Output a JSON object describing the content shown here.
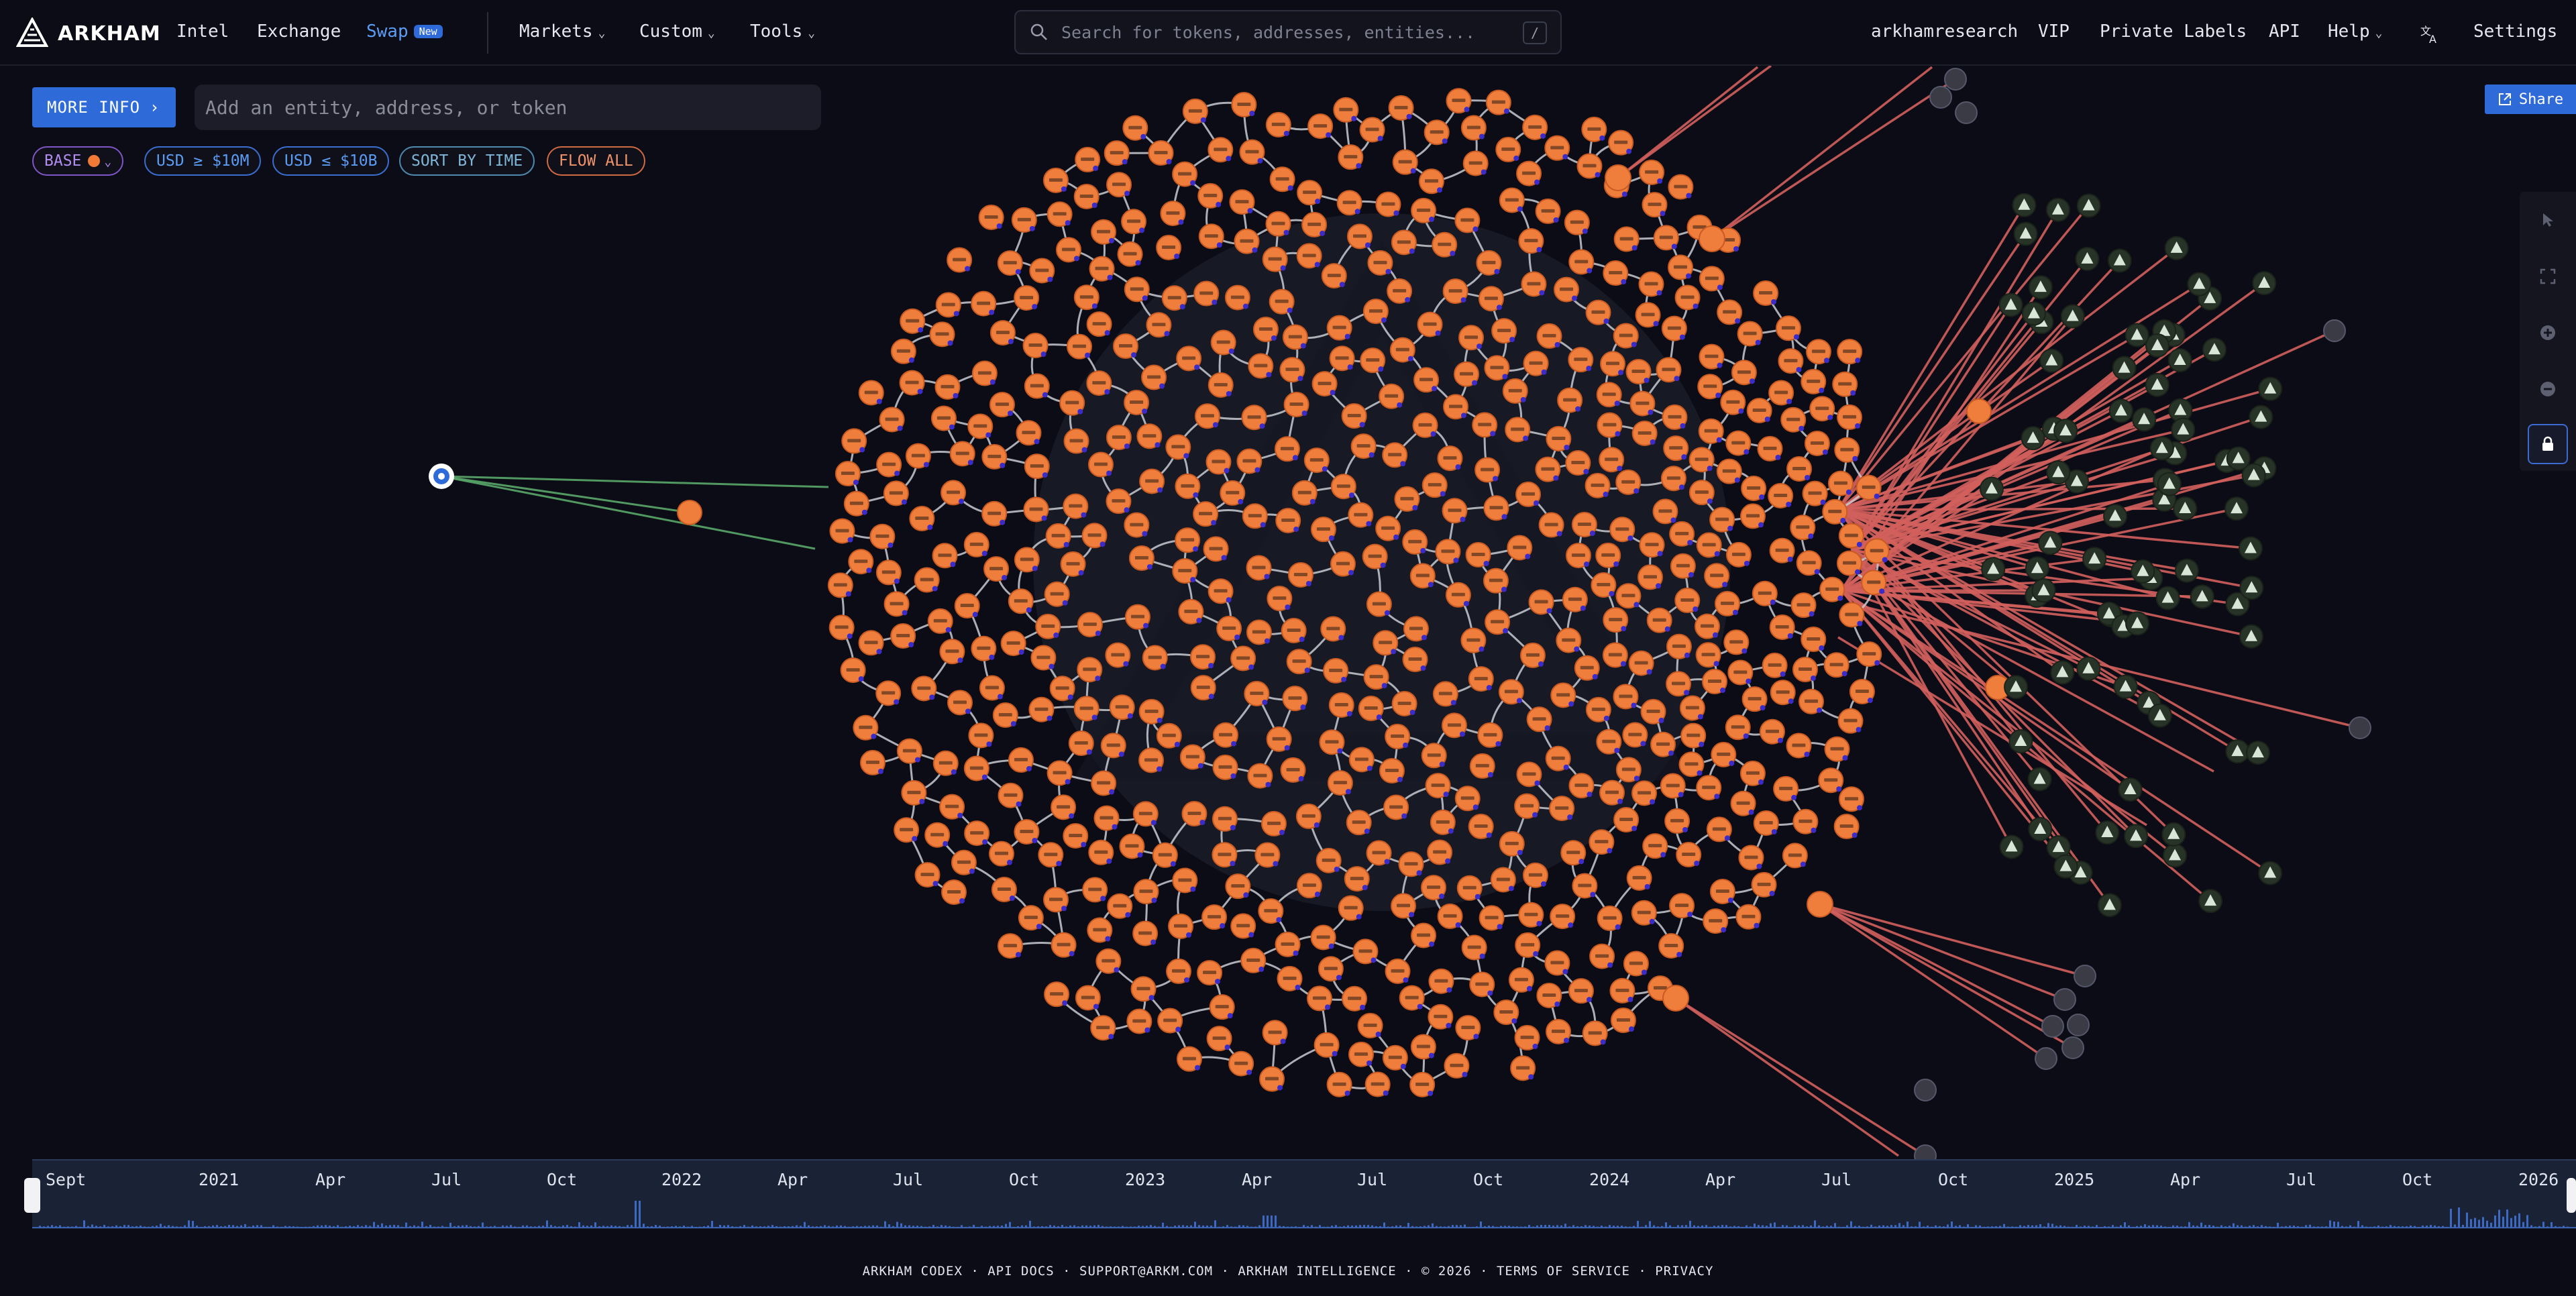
{
  "nav": {
    "brand": "ARKHAM",
    "items": [
      {
        "label": "Intel"
      },
      {
        "label": "Exchange"
      },
      {
        "label": "Swap",
        "badge": "New"
      },
      {
        "label": "Markets"
      },
      {
        "label": "Custom"
      },
      {
        "label": "Tools"
      }
    ],
    "search_placeholder": "Search for tokens, addresses, entities...",
    "search_shortcut": "/",
    "right_items": [
      "arkhamresearch",
      "VIP",
      "Private Labels",
      "API",
      "Help",
      "Settings"
    ]
  },
  "controls": {
    "more_info_label": "MORE INFO",
    "entity_placeholder": "Add an entity, address, or token",
    "filters": {
      "base": "BASE",
      "usd_min": "USD ≥ $10M",
      "usd_max": "USD ≤ $10B",
      "sort": "SORT BY TIME",
      "flow": "FLOW ALL"
    },
    "share_label": "Share"
  },
  "graph": {
    "colors": {
      "node": "#ef7e3c",
      "node_border": "#c85a22",
      "edge_inner": "#c9cbd2",
      "edge_out": "#d2605d",
      "edge_in": "#59a86a",
      "green_node": "#273327",
      "gray_node": "#3a3b45"
    }
  },
  "timeline": {
    "labels": [
      "Sept",
      "2021",
      "Apr",
      "Jul",
      "Oct",
      "2022",
      "Apr",
      "Jul",
      "Oct",
      "2023",
      "Apr",
      "Jul",
      "Oct",
      "2024",
      "Apr",
      "Jul",
      "Oct",
      "2025",
      "Apr",
      "Jul",
      "Oct",
      "2026"
    ]
  },
  "footer": {
    "text": "ARKHAM CODEX · API DOCS · SUPPORT@ARKM.COM · ARKHAM INTELLIGENCE · © 2026 · TERMS OF SERVICE · PRIVACY"
  }
}
